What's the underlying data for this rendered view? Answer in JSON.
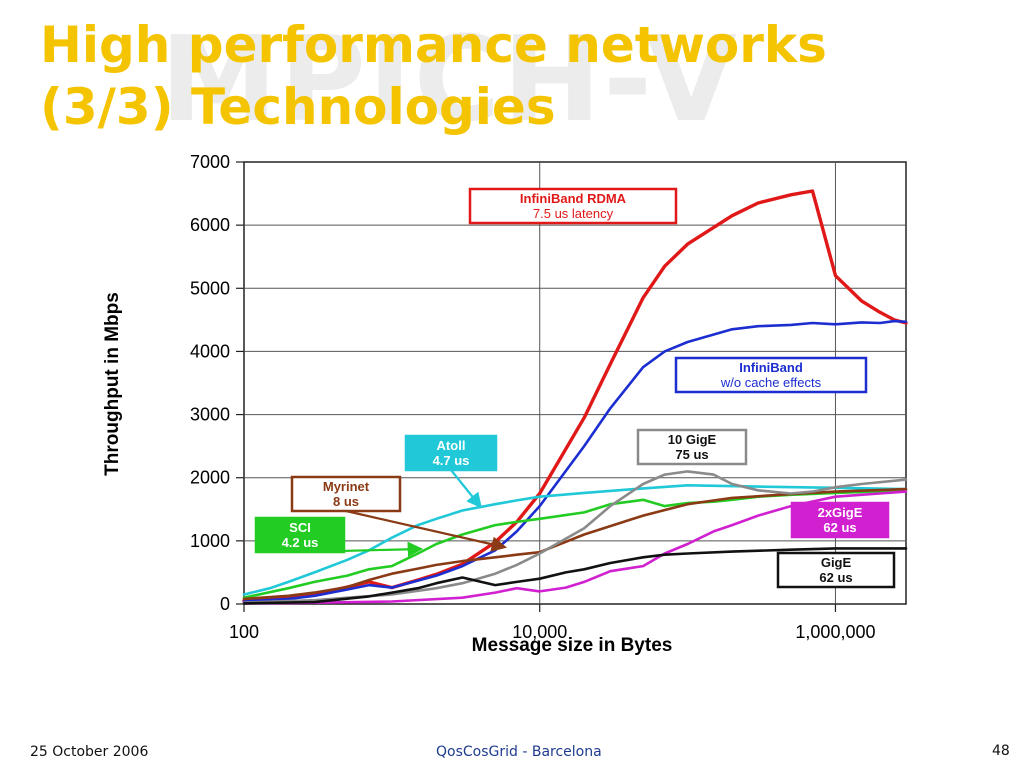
{
  "slide": {
    "title_line1": "High performance networks",
    "title_line2": "(3/3) Technologies",
    "watermark": "MPICH-V",
    "footer_date": "25 October 2006",
    "footer_center": "QosCosGrid - Barcelona",
    "page_number": "48"
  },
  "chart_data": {
    "type": "line",
    "xlabel": "Message size in Bytes",
    "ylabel": "Throughput in Mbps",
    "x_scale": "log",
    "xlim": [
      100,
      3000000
    ],
    "ylim": [
      0,
      7000
    ],
    "x_ticks": [
      {
        "value": 100,
        "label": "100"
      },
      {
        "value": 10000,
        "label": "10,000"
      },
      {
        "value": 1000000,
        "label": "1,000,000"
      }
    ],
    "y_ticks": [
      {
        "value": 0,
        "label": "0"
      },
      {
        "value": 1000,
        "label": "1000"
      },
      {
        "value": 2000,
        "label": "2000"
      },
      {
        "value": 3000,
        "label": "3000"
      },
      {
        "value": 4000,
        "label": "4000"
      },
      {
        "value": 5000,
        "label": "5000"
      },
      {
        "value": 6000,
        "label": "6000"
      },
      {
        "value": 7000,
        "label": "7000"
      }
    ],
    "grid": true,
    "series": [
      {
        "key": "infiniband_rdma",
        "color": "#e01818",
        "x": [
          100,
          200,
          300,
          500,
          700,
          1000,
          1500,
          2000,
          3000,
          5000,
          7000,
          10000,
          20000,
          30000,
          50000,
          70000,
          100000,
          200000,
          300000,
          500000,
          700000,
          1000000,
          1500000,
          2000000,
          2500000,
          3000000
        ],
        "y": [
          50,
          90,
          150,
          270,
          350,
          260,
          380,
          470,
          630,
          980,
          1300,
          1750,
          2950,
          3800,
          4850,
          5350,
          5700,
          6150,
          6350,
          6480,
          6540,
          5200,
          4800,
          4620,
          4500,
          4450
        ]
      },
      {
        "key": "infiniband",
        "color": "#1c2ed0",
        "x": [
          100,
          200,
          300,
          500,
          700,
          1000,
          1500,
          2000,
          3000,
          5000,
          7000,
          10000,
          20000,
          30000,
          50000,
          70000,
          100000,
          200000,
          300000,
          500000,
          700000,
          1000000,
          1500000,
          2000000,
          2500000,
          3000000
        ],
        "y": [
          40,
          80,
          130,
          230,
          300,
          260,
          370,
          450,
          600,
          850,
          1150,
          1550,
          2500,
          3100,
          3750,
          4000,
          4150,
          4350,
          4400,
          4420,
          4450,
          4430,
          4460,
          4450,
          4480,
          4470
        ]
      },
      {
        "key": "atoll",
        "color": "#20c8d8",
        "x": [
          100,
          150,
          200,
          300,
          500,
          700,
          1000,
          1500,
          2000,
          3000,
          5000,
          7000,
          10000,
          20000,
          50000,
          100000,
          300000,
          1000000,
          3000000
        ],
        "y": [
          150,
          250,
          350,
          500,
          700,
          850,
          1050,
          1250,
          1350,
          1480,
          1580,
          1640,
          1700,
          1760,
          1830,
          1880,
          1860,
          1840,
          1820
        ]
      },
      {
        "key": "sci",
        "color": "#22cc22",
        "x": [
          100,
          200,
          300,
          500,
          700,
          1000,
          1500,
          2000,
          3000,
          5000,
          7000,
          10000,
          20000,
          30000,
          50000,
          70000,
          100000,
          150000,
          200000,
          300000,
          500000,
          1000000,
          3000000
        ],
        "y": [
          100,
          250,
          350,
          450,
          550,
          600,
          800,
          950,
          1100,
          1250,
          1300,
          1350,
          1450,
          1580,
          1650,
          1550,
          1600,
          1620,
          1650,
          1700,
          1730,
          1760,
          1800
        ]
      },
      {
        "key": "myrinet",
        "color": "#8a3a14",
        "x": [
          100,
          200,
          300,
          500,
          700,
          1000,
          1500,
          2000,
          3000,
          5000,
          7000,
          10000,
          20000,
          50000,
          100000,
          200000,
          500000,
          1000000,
          3000000
        ],
        "y": [
          80,
          130,
          180,
          270,
          380,
          480,
          560,
          620,
          680,
          740,
          780,
          820,
          1100,
          1400,
          1580,
          1680,
          1740,
          1780,
          1820
        ]
      },
      {
        "key": "10gige",
        "color": "#8a8a8a",
        "x": [
          100,
          300,
          1000,
          2000,
          3000,
          5000,
          7000,
          10000,
          20000,
          30000,
          50000,
          70000,
          100000,
          150000,
          200000,
          300000,
          500000,
          700000,
          1000000,
          1500000,
          3000000
        ],
        "y": [
          20,
          60,
          150,
          250,
          330,
          480,
          620,
          800,
          1200,
          1550,
          1900,
          2050,
          2100,
          2050,
          1900,
          1800,
          1750,
          1780,
          1850,
          1900,
          1970
        ]
      },
      {
        "key": "2xgige",
        "color": "#d020d0",
        "x": [
          100,
          300,
          1000,
          3000,
          5000,
          7000,
          10000,
          15000,
          20000,
          30000,
          50000,
          70000,
          100000,
          150000,
          200000,
          300000,
          500000,
          1000000,
          3000000
        ],
        "y": [
          10,
          20,
          40,
          100,
          180,
          250,
          200,
          260,
          350,
          520,
          600,
          800,
          950,
          1150,
          1250,
          1400,
          1550,
          1700,
          1780
        ]
      },
      {
        "key": "gige",
        "color": "#111111",
        "x": [
          100,
          300,
          700,
          1000,
          1500,
          2000,
          3000,
          5000,
          7000,
          10000,
          15000,
          20000,
          30000,
          50000,
          70000,
          100000,
          200000,
          500000,
          1000000,
          3000000
        ],
        "y": [
          10,
          30,
          120,
          180,
          250,
          330,
          420,
          300,
          350,
          400,
          500,
          550,
          650,
          740,
          780,
          800,
          830,
          860,
          880,
          880
        ]
      }
    ],
    "annotations": [
      {
        "series": "infiniband_rdma",
        "line1": "InfiniBand RDMA",
        "line2": "7.5 us latency",
        "color": "#e01818"
      },
      {
        "series": "infiniband",
        "line1": "InfiniBand",
        "line2": "w/o cache effects",
        "color": "#1c2ed0"
      },
      {
        "series": "10gige",
        "line1": "10 GigE",
        "line2": "75 us",
        "color": "#8a8a8a"
      },
      {
        "series": "atoll",
        "line1": "Atoll",
        "line2": "4.7 us",
        "color": "#20c8d8"
      },
      {
        "series": "myrinet",
        "line1": "Myrinet",
        "line2": "8 us",
        "color": "#8a3a14"
      },
      {
        "series": "sci",
        "line1": "SCI",
        "line2": "4.2 us",
        "color": "#22cc22"
      },
      {
        "series": "2xgige",
        "line1": "2xGigE",
        "line2": "62 us",
        "color": "#d020d0"
      },
      {
        "series": "gige",
        "line1": "GigE",
        "line2": "62 us",
        "color": "#111111"
      }
    ]
  }
}
